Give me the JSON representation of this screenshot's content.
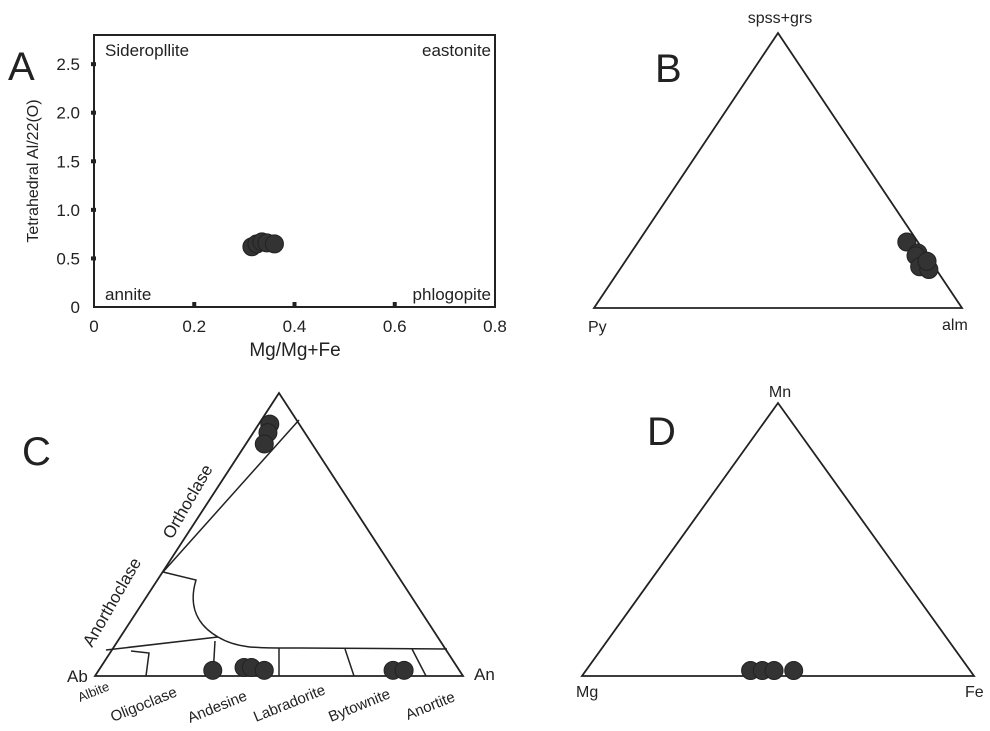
{
  "chart_data": [
    {
      "panel": "A",
      "type": "scatter",
      "xlabel": "Mg/Mg+Fe",
      "ylabel": "Tetrahedral Al/22(O)",
      "xlim": [
        0,
        0.8
      ],
      "ylim": [
        0,
        2.8
      ],
      "x_ticks": [
        "0",
        "0.2",
        "0.4",
        "0.6",
        "0.8"
      ],
      "y_ticks": [
        "0",
        "0.5",
        "1.0",
        "1.5",
        "2.0",
        "2.5"
      ],
      "y_tick_values": [
        0,
        0.5,
        1.0,
        1.5,
        2.0,
        2.5
      ],
      "x_tick_values": [
        0,
        0.2,
        0.4,
        0.6,
        0.8
      ],
      "field_labels": [
        "Sideropllite",
        "eastonite",
        "annite",
        "phlogopite"
      ],
      "points": [
        {
          "x": 0.315,
          "y": 0.62
        },
        {
          "x": 0.325,
          "y": 0.65
        },
        {
          "x": 0.335,
          "y": 0.67
        },
        {
          "x": 0.345,
          "y": 0.66
        },
        {
          "x": 0.36,
          "y": 0.65
        }
      ]
    },
    {
      "panel": "B",
      "type": "ternary",
      "vertices": {
        "top": "spss+grs",
        "left": "Py",
        "right": "alm"
      },
      "points": [
        {
          "top": 0.24,
          "left": 0.03,
          "right": 0.73
        },
        {
          "top": 0.2,
          "left": 0.02,
          "right": 0.78
        },
        {
          "top": 0.19,
          "left": 0.03,
          "right": 0.78
        },
        {
          "top": 0.15,
          "left": 0.04,
          "right": 0.81
        },
        {
          "top": 0.14,
          "left": 0.02,
          "right": 0.84
        },
        {
          "top": 0.17,
          "left": 0.01,
          "right": 0.82
        }
      ]
    },
    {
      "panel": "C",
      "type": "ternary",
      "vertices": {
        "top": "",
        "left": "Ab",
        "right": "An"
      },
      "field_labels": [
        "Orthoclase",
        "Anorthoclase",
        "Albite",
        "Oligoclase",
        "Andesine",
        "Labradorite",
        "Bytownite",
        "Anortite"
      ],
      "points": [
        {
          "top": 0.89,
          "left": 0.08,
          "right": 0.03
        },
        {
          "top": 0.86,
          "left": 0.1,
          "right": 0.04
        },
        {
          "top": 0.82,
          "left": 0.13,
          "right": 0.05
        },
        {
          "top": 0.02,
          "left": 0.67,
          "right": 0.31
        },
        {
          "top": 0.03,
          "left": 0.58,
          "right": 0.39
        },
        {
          "top": 0.03,
          "left": 0.56,
          "right": 0.41
        },
        {
          "top": 0.02,
          "left": 0.53,
          "right": 0.45
        },
        {
          "top": 0.02,
          "left": 0.18,
          "right": 0.8
        },
        {
          "top": 0.02,
          "left": 0.15,
          "right": 0.83
        }
      ]
    },
    {
      "panel": "D",
      "type": "ternary",
      "vertices": {
        "top": "Mn",
        "left": "Mg",
        "right": "Fe"
      },
      "points": [
        {
          "top": 0.02,
          "left": 0.56,
          "right": 0.42
        },
        {
          "top": 0.02,
          "left": 0.53,
          "right": 0.45
        },
        {
          "top": 0.02,
          "left": 0.5,
          "right": 0.48
        },
        {
          "top": 0.02,
          "left": 0.45,
          "right": 0.53
        }
      ]
    }
  ]
}
